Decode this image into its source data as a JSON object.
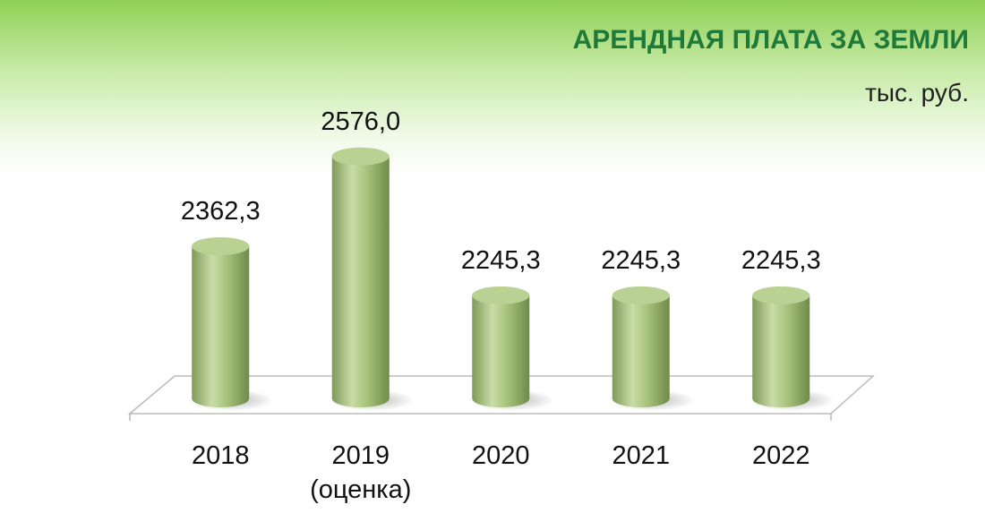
{
  "chart_data": {
    "type": "bar3d",
    "title": "АРЕНДНАЯ ПЛАТА ЗА ЗЕМЛИ",
    "subtitle": "тыс. руб.",
    "categories": [
      "2018",
      "2019\n(оценка)",
      "2020",
      "2021",
      "2022"
    ],
    "values": [
      2362.3,
      2576.0,
      2245.3,
      2245.3,
      2245.3
    ],
    "value_labels": [
      "2362,3",
      "2576,0",
      "2245,3",
      "2245,3",
      "2245,3"
    ],
    "color": "#a8c47c",
    "ylim": [
      2000,
      2650
    ]
  }
}
